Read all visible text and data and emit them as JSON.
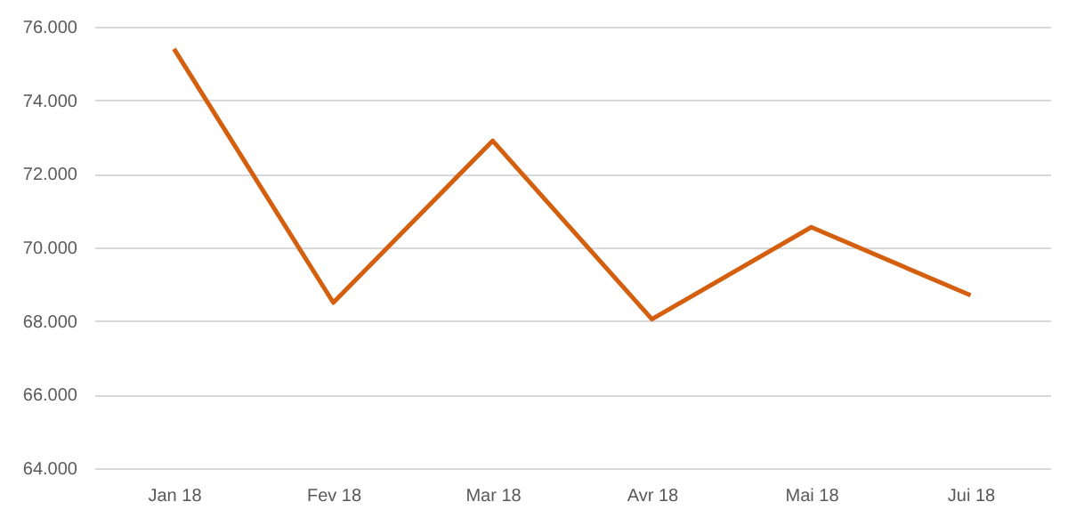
{
  "chart_data": {
    "type": "line",
    "categories": [
      "Jan 18",
      "Fev 18",
      "Mar 18",
      "Avr 18",
      "Mai 18",
      "Jui 18"
    ],
    "series": [
      {
        "color": "#d4600f",
        "values": [
          75400,
          68500,
          72900,
          68050,
          70550,
          68700
        ]
      }
    ],
    "ylim": [
      64000,
      76000
    ],
    "yticks": [
      {
        "value": 64000,
        "label": "64.000"
      },
      {
        "value": 66000,
        "label": "66.000"
      },
      {
        "value": 68000,
        "label": "68.000"
      },
      {
        "value": 70000,
        "label": "70.000"
      },
      {
        "value": 72000,
        "label": "72.000"
      },
      {
        "value": 74000,
        "label": "74.000"
      },
      {
        "value": 76000,
        "label": "76.000"
      }
    ],
    "grid": "y",
    "marker": "none",
    "line_style": "solid"
  }
}
